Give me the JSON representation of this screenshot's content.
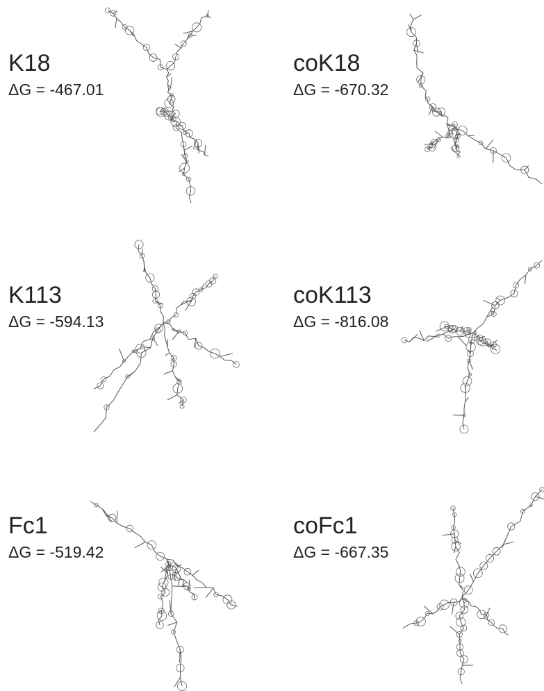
{
  "panels": [
    {
      "name": "K18",
      "energy": "ΔG = -467.01"
    },
    {
      "name": "coK18",
      "energy": "ΔG = -670.32"
    },
    {
      "name": "K113",
      "energy": "ΔG = -594.13"
    },
    {
      "name": "coK113",
      "energy": "ΔG = -816.08"
    },
    {
      "name": "Fc1",
      "energy": "ΔG = -519.42"
    },
    {
      "name": "coFc1",
      "energy": "ΔG = -667.35"
    }
  ]
}
